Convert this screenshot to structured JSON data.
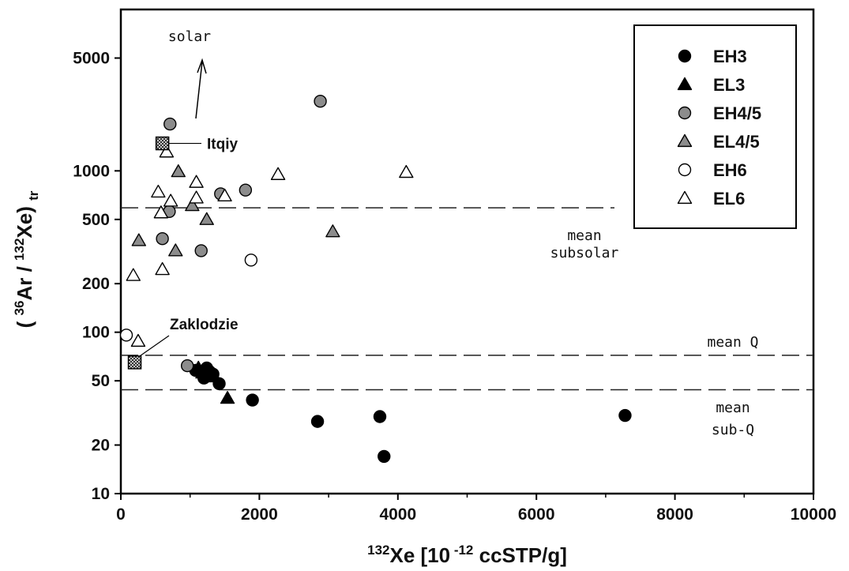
{
  "chart_data": {
    "type": "scatter",
    "x_scale": "linear",
    "y_scale": "log",
    "xlim": [
      0,
      10000
    ],
    "ylim": [
      10,
      10000
    ],
    "x_ticks": [
      "0",
      "2000",
      "4000",
      "6000",
      "8000",
      "10000"
    ],
    "y_ticks": [
      "10",
      "20",
      "50",
      "100",
      "200",
      "500",
      "1000",
      "5000"
    ],
    "xlabel": {
      "sup": "132",
      "main": "Xe [10",
      "sup2": " -12",
      "tail": " ccSTP/g]"
    },
    "ylabel": {
      "open": "( ",
      "sup1": "36",
      "part1": "Ar / ",
      "sup2": "132",
      "part2": "Xe) ",
      "sub": "tr"
    },
    "grid": false,
    "legend_position": "top-right",
    "series": [
      {
        "name": "EH3",
        "marker": "circle",
        "fill": "#000000",
        "points": [
          [
            1080,
            58
          ],
          [
            1200,
            52
          ],
          [
            1240,
            60
          ],
          [
            1280,
            57
          ],
          [
            1330,
            55
          ],
          [
            1420,
            48
          ],
          [
            1900,
            38
          ],
          [
            2840,
            28
          ],
          [
            3740,
            30
          ],
          [
            3800,
            17
          ],
          [
            7280,
            30.5
          ]
        ]
      },
      {
        "name": "EL3",
        "marker": "triangle",
        "fill": "#000000",
        "points": [
          [
            1120,
            60
          ],
          [
            1180,
            56
          ],
          [
            1350,
            53
          ],
          [
            1540,
            39
          ]
        ]
      },
      {
        "name": "EH4/5",
        "marker": "circle",
        "fill": "#8c8c8c",
        "points": [
          [
            710,
            1950
          ],
          [
            2880,
            2700
          ],
          [
            1440,
            720
          ],
          [
            1800,
            760
          ],
          [
            700,
            560
          ],
          [
            600,
            380
          ],
          [
            1160,
            320
          ],
          [
            960,
            62
          ]
        ]
      },
      {
        "name": "EL4/5",
        "marker": "triangle",
        "fill": "#8c8c8c",
        "points": [
          [
            830,
            990
          ],
          [
            1030,
            610
          ],
          [
            1240,
            500
          ],
          [
            260,
            370
          ],
          [
            790,
            320
          ],
          [
            3060,
            420
          ]
        ]
      },
      {
        "name": "EH6",
        "marker": "circle",
        "fill": "#ffffff",
        "points": [
          [
            1880,
            280
          ],
          [
            80,
            96
          ]
        ]
      },
      {
        "name": "EL6",
        "marker": "triangle",
        "fill": "#ffffff",
        "points": [
          [
            660,
            1310
          ],
          [
            2270,
            950
          ],
          [
            4120,
            980
          ],
          [
            1090,
            850
          ],
          [
            540,
            740
          ],
          [
            1090,
            680
          ],
          [
            720,
            650
          ],
          [
            1500,
            700
          ],
          [
            580,
            550
          ],
          [
            180,
            225
          ],
          [
            600,
            245
          ],
          [
            250,
            88
          ]
        ]
      }
    ],
    "special_points": [
      {
        "label": "Itqiy",
        "x": 600,
        "y": 1480
      },
      {
        "label": "Zaklodzie",
        "x": 200,
        "y": 65
      }
    ],
    "reference_lines": [
      {
        "name": "mean subsolar",
        "y": 590,
        "label_lines": [
          "mean",
          "subsolar"
        ]
      },
      {
        "name": "mean Q",
        "y": 72,
        "label_lines": [
          "mean Q"
        ]
      },
      {
        "name": "mean sub-Q",
        "y": 44,
        "label_lines": [
          "mean",
          "sub-Q"
        ]
      }
    ],
    "annotations": [
      {
        "text": "solar",
        "arrow": "up"
      }
    ]
  }
}
